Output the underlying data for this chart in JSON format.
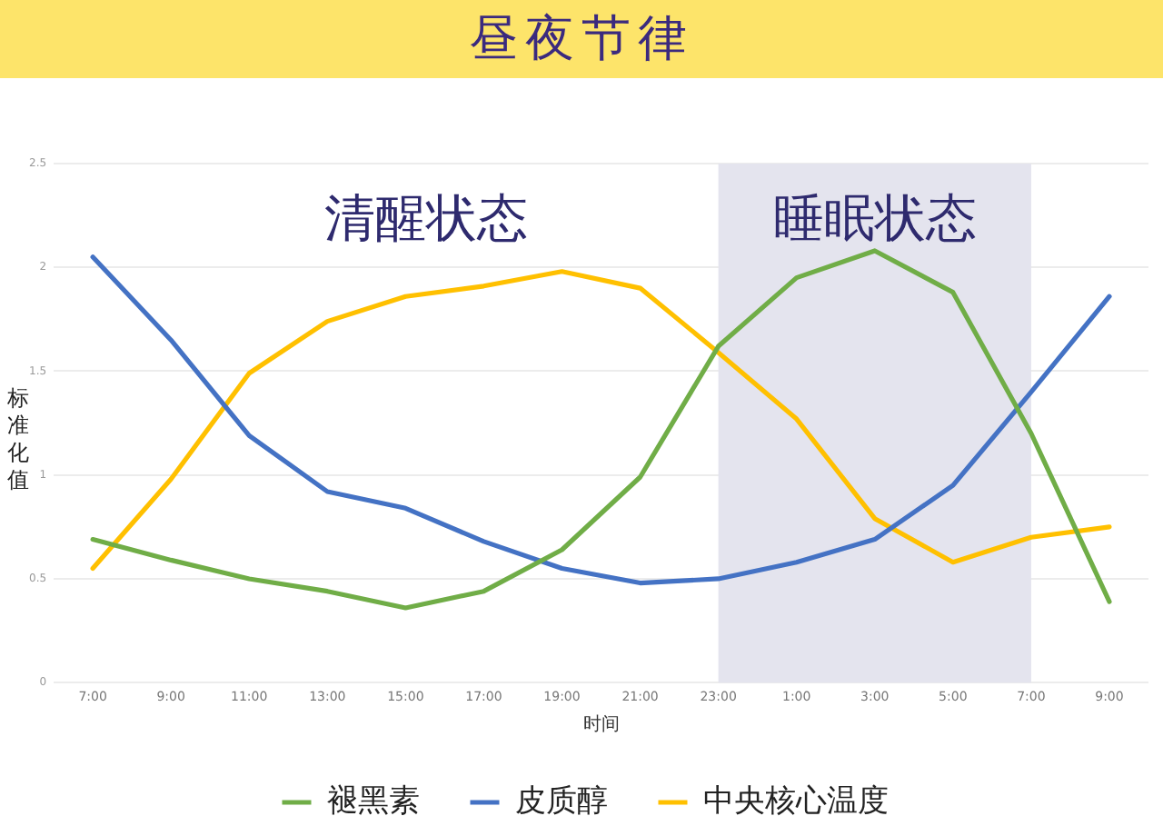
{
  "chart_data": {
    "type": "line",
    "title": "昼夜节律",
    "xlabel": "时间",
    "ylabel": "标准化值",
    "x": [
      "--01-01T07:00",
      "--01-01T09:00",
      "--01-01T11:00",
      "--01-01T13:00",
      "--01-01T15:00",
      "--01-01T17:00",
      "--01-01T19:00",
      "--01-01T21:00",
      "--01-01T23:00",
      "--01-02T01:00",
      "--01-02T03:00",
      "--01-02T05:00",
      "--01-02T07:00",
      "--01-02T09:00"
    ],
    "series": [
      {
        "name": "褪黑素",
        "color": "#70ad47",
        "values": [
          0.69,
          0.59,
          0.5,
          0.44,
          0.36,
          0.44,
          0.64,
          0.99,
          1.62,
          1.95,
          2.08,
          1.88,
          1.2,
          0.39
        ]
      },
      {
        "name": "皮质醇",
        "color": "#4472c4",
        "values": [
          2.05,
          1.65,
          1.19,
          0.92,
          0.84,
          0.68,
          0.55,
          0.48,
          0.5,
          0.58,
          0.69,
          0.95,
          1.4,
          1.86
        ]
      },
      {
        "name": "中央核心温度",
        "color": "#ffc000",
        "values": [
          0.55,
          0.98,
          1.49,
          1.74,
          1.86,
          1.91,
          1.98,
          1.9,
          1.59,
          1.27,
          0.79,
          0.58,
          0.7,
          0.75
        ]
      }
    ],
    "xlim": [
      "--01-01T06:00",
      "--01-02T10:00"
    ],
    "xticks": [
      {
        "value": "--01-01T07:00",
        "label": "7:00"
      },
      {
        "value": "--01-01T09:00",
        "label": "9:00"
      },
      {
        "value": "--01-01T11:00",
        "label": "11:00"
      },
      {
        "value": "--01-01T13:00",
        "label": "13:00"
      },
      {
        "value": "--01-01T15:00",
        "label": "15:00"
      },
      {
        "value": "--01-01T17:00",
        "label": "17:00"
      },
      {
        "value": "--01-01T19:00",
        "label": "19:00"
      },
      {
        "value": "--01-01T21:00",
        "label": "21:00"
      },
      {
        "value": "--01-01T23:00",
        "label": "23:00"
      },
      {
        "value": "--01-02T01:00",
        "label": "1:00"
      },
      {
        "value": "--01-02T03:00",
        "label": "3:00"
      },
      {
        "value": "--01-02T05:00",
        "label": "5:00"
      },
      {
        "value": "--01-02T07:00",
        "label": "7:00"
      },
      {
        "value": "--01-02T09:00",
        "label": "9:00"
      }
    ],
    "ylim": [
      0,
      2.5
    ],
    "yticks": [
      0,
      0.5,
      1,
      1.5,
      2,
      2.5
    ],
    "grid": "y",
    "legend": "bottom",
    "marker": "none",
    "line_style": "solid",
    "bands": [
      {
        "axis": "x",
        "from": "--01-01T23:00",
        "to": "--01-02T07:00",
        "label": "睡眠状态",
        "color": "#e4e4ee"
      }
    ],
    "annotations": [
      "清醒状态"
    ]
  }
}
